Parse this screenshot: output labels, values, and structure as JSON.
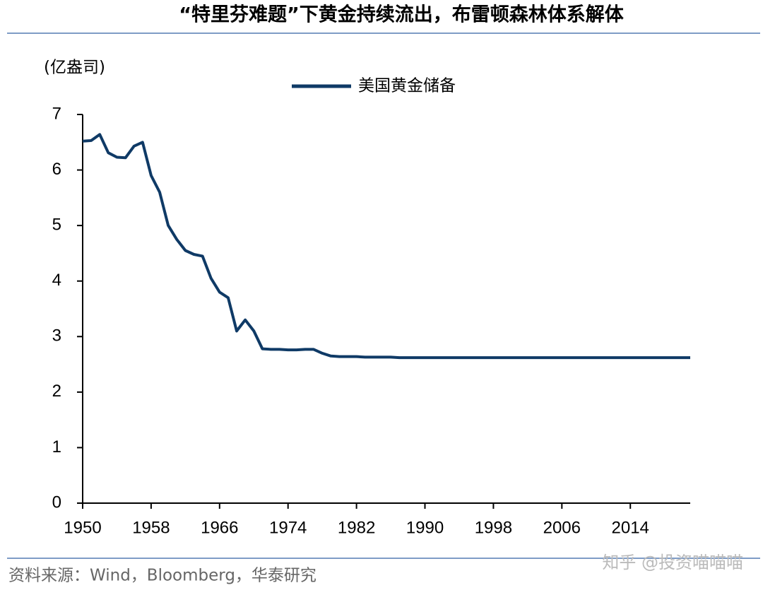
{
  "chart_data": {
    "type": "line",
    "title": "“特里芬难题”下黄金持续流出，布雷顿森林体系解体",
    "y_label": "(亿盎司)",
    "source": "资料来源：Wind，Bloomberg，华泰研究",
    "watermark": "知乎 @投资喵喵喵",
    "x": [
      1950,
      1951,
      1952,
      1953,
      1954,
      1955,
      1956,
      1957,
      1958,
      1959,
      1960,
      1961,
      1962,
      1963,
      1964,
      1965,
      1966,
      1967,
      1968,
      1969,
      1970,
      1971,
      1972,
      1973,
      1974,
      1975,
      1976,
      1977,
      1978,
      1979,
      1980,
      1981,
      1982,
      1983,
      1984,
      1985,
      1986,
      1987,
      1988,
      1989,
      1990,
      1991,
      1992,
      1993,
      1994,
      1995,
      1996,
      1997,
      1998,
      1999,
      2000,
      2001,
      2002,
      2003,
      2004,
      2005,
      2006,
      2007,
      2008,
      2009,
      2010,
      2011,
      2012,
      2013,
      2014,
      2015,
      2016,
      2017,
      2018,
      2019,
      2020,
      2021
    ],
    "series": [
      {
        "name": "美国黄金储备",
        "color": "#0f3a66",
        "values": [
          6.52,
          6.53,
          6.64,
          6.31,
          6.23,
          6.22,
          6.43,
          6.5,
          5.9,
          5.6,
          5.0,
          4.75,
          4.55,
          4.48,
          4.45,
          4.05,
          3.8,
          3.7,
          3.1,
          3.3,
          3.1,
          2.78,
          2.77,
          2.77,
          2.76,
          2.76,
          2.77,
          2.77,
          2.7,
          2.65,
          2.64,
          2.64,
          2.64,
          2.63,
          2.63,
          2.63,
          2.63,
          2.62,
          2.62,
          2.62,
          2.62,
          2.62,
          2.62,
          2.62,
          2.62,
          2.62,
          2.62,
          2.62,
          2.62,
          2.62,
          2.62,
          2.62,
          2.62,
          2.62,
          2.62,
          2.62,
          2.62,
          2.62,
          2.62,
          2.62,
          2.62,
          2.62,
          2.62,
          2.62,
          2.62,
          2.62,
          2.62,
          2.62,
          2.62,
          2.62,
          2.62,
          2.62
        ]
      }
    ],
    "xlim": [
      1950,
      2021
    ],
    "xticks": [
      1950,
      1958,
      1966,
      1974,
      1982,
      1990,
      1998,
      2006,
      2014
    ],
    "ylim": [
      0,
      7
    ],
    "yticks": [
      0,
      1,
      2,
      3,
      4,
      5,
      6,
      7
    ],
    "grid": false
  }
}
